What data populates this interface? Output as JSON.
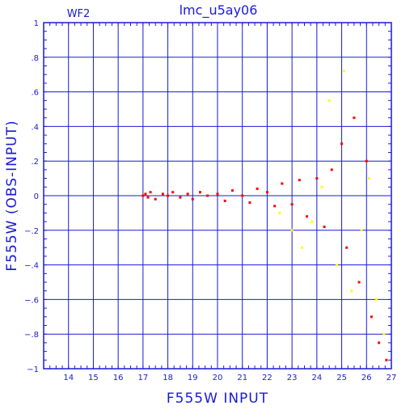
{
  "chart_data": {
    "type": "scatter",
    "title": "lmc_u5ay06",
    "panel_label": "WF2",
    "xlabel": "F555W INPUT",
    "ylabel": "F555W (OBS-INPUT)",
    "xlim": [
      13,
      27
    ],
    "ylim": [
      -1,
      1
    ],
    "x_ticks": [
      14,
      15,
      16,
      17,
      18,
      19,
      20,
      21,
      22,
      23,
      24,
      25,
      26,
      27
    ],
    "y_ticks": [
      -1,
      -0.8,
      -0.6,
      -0.4,
      -0.2,
      0,
      0.2,
      0.4,
      0.6,
      0.8,
      1
    ],
    "grid": true,
    "colors": {
      "frame": "#1a1ad6",
      "grid": "#1a1ad6",
      "series_a": "#ff0000",
      "series_b": "#ffff00"
    },
    "series": [
      {
        "color": "#ff0000",
        "points": [
          [
            17.0,
            0.0
          ],
          [
            17.1,
            0.01
          ],
          [
            17.2,
            -0.01
          ],
          [
            17.3,
            0.02
          ],
          [
            17.5,
            -0.02
          ],
          [
            17.8,
            0.01
          ],
          [
            18.0,
            0.0
          ],
          [
            18.2,
            0.02
          ],
          [
            18.5,
            -0.01
          ],
          [
            18.8,
            0.01
          ],
          [
            19.0,
            -0.02
          ],
          [
            19.3,
            0.02
          ],
          [
            19.6,
            0.0
          ],
          [
            20.0,
            0.01
          ],
          [
            20.3,
            -0.03
          ],
          [
            20.6,
            0.03
          ],
          [
            21.0,
            0.0
          ],
          [
            21.3,
            -0.04
          ],
          [
            21.6,
            0.04
          ],
          [
            22.0,
            0.02
          ],
          [
            22.3,
            -0.06
          ],
          [
            22.6,
            0.07
          ],
          [
            23.0,
            -0.05
          ],
          [
            23.3,
            0.09
          ],
          [
            23.6,
            -0.12
          ],
          [
            24.0,
            0.1
          ],
          [
            24.3,
            -0.18
          ],
          [
            24.6,
            0.15
          ],
          [
            25.0,
            0.3
          ],
          [
            25.2,
            -0.3
          ],
          [
            25.5,
            0.45
          ],
          [
            25.7,
            -0.5
          ],
          [
            26.0,
            0.2
          ],
          [
            26.2,
            -0.7
          ],
          [
            26.5,
            -0.85
          ],
          [
            26.8,
            -0.95
          ]
        ]
      },
      {
        "color": "#ffff00",
        "points": [
          [
            22.5,
            -0.1
          ],
          [
            23.0,
            -0.2
          ],
          [
            23.4,
            -0.3
          ],
          [
            23.8,
            -0.15
          ],
          [
            24.2,
            0.05
          ],
          [
            24.5,
            0.55
          ],
          [
            24.8,
            -0.4
          ],
          [
            25.1,
            0.72
          ],
          [
            25.4,
            -0.55
          ],
          [
            25.8,
            -0.2
          ],
          [
            26.1,
            0.1
          ],
          [
            26.4,
            -0.6
          ],
          [
            26.7,
            -0.8
          ]
        ]
      }
    ]
  }
}
